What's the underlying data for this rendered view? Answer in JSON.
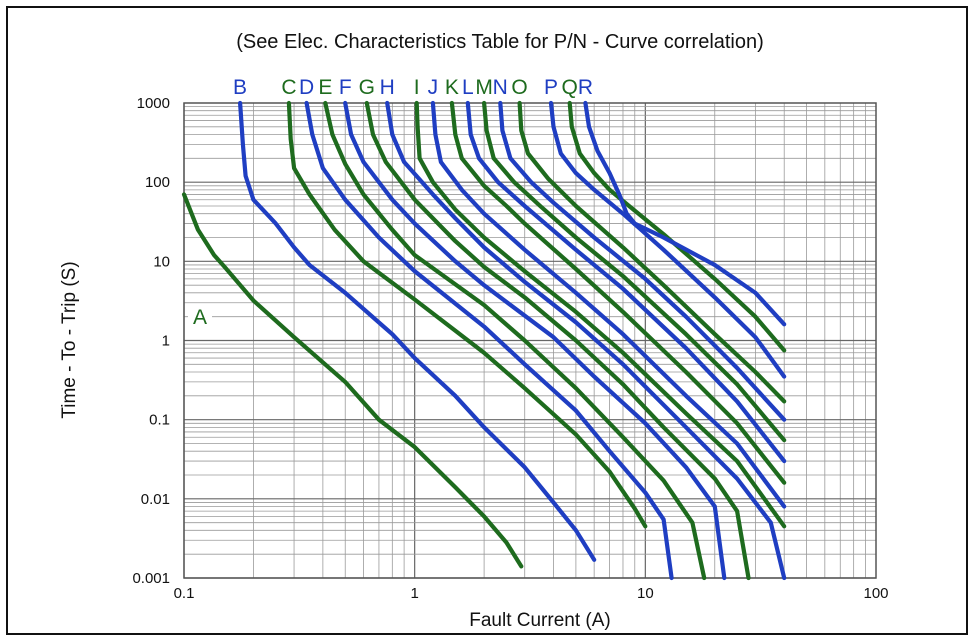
{
  "chart_data": {
    "type": "line",
    "title": "(See Elec. Characteristics Table for P/N - Curve correlation)",
    "xlabel": "Fault Current (A)",
    "ylabel": "Time - To - Trip (S)",
    "xscale": "log",
    "yscale": "log",
    "xlim": [
      0.1,
      100
    ],
    "ylim": [
      0.001,
      1000
    ],
    "xticks": [
      "0.1",
      "1",
      "10",
      "100"
    ],
    "yticks": [
      "1000",
      "100",
      "10",
      "1",
      "0.1",
      "0.01",
      "0.001"
    ],
    "grid": true,
    "colors": {
      "blue": "#1f3ec2",
      "green": "#1e6b1e"
    },
    "series": [
      {
        "name": "A",
        "color": "#1e6b1e",
        "label_pos": "left",
        "points": [
          [
            0.1,
            70
          ],
          [
            0.115,
            25
          ],
          [
            0.135,
            12
          ],
          [
            0.15,
            8.5
          ],
          [
            0.2,
            3.2
          ],
          [
            0.3,
            1.1
          ],
          [
            0.5,
            0.3
          ],
          [
            0.7,
            0.1
          ],
          [
            1,
            0.045
          ],
          [
            1.5,
            0.014
          ],
          [
            2,
            0.006
          ],
          [
            2.5,
            0.0028
          ],
          [
            2.9,
            0.0014
          ]
        ]
      },
      {
        "name": "B",
        "color": "#1f3ec2",
        "points": [
          [
            0.175,
            1000
          ],
          [
            0.18,
            300
          ],
          [
            0.185,
            120
          ],
          [
            0.2,
            60
          ],
          [
            0.25,
            30
          ],
          [
            0.3,
            15
          ],
          [
            0.35,
            9
          ],
          [
            0.5,
            4
          ],
          [
            0.8,
            1.2
          ],
          [
            1,
            0.6
          ],
          [
            1.5,
            0.2
          ],
          [
            2,
            0.08
          ],
          [
            3,
            0.025
          ],
          [
            4,
            0.009
          ],
          [
            5,
            0.004
          ],
          [
            6,
            0.0017
          ]
        ]
      },
      {
        "name": "C",
        "color": "#1e6b1e",
        "points": [
          [
            0.285,
            1000
          ],
          [
            0.29,
            350
          ],
          [
            0.3,
            150
          ],
          [
            0.35,
            70
          ],
          [
            0.45,
            25
          ],
          [
            0.6,
            10
          ],
          [
            1,
            3.3
          ],
          [
            2,
            0.7
          ],
          [
            3,
            0.25
          ],
          [
            5,
            0.065
          ],
          [
            7,
            0.022
          ],
          [
            9,
            0.0075
          ],
          [
            10,
            0.0045
          ]
        ]
      },
      {
        "name": "D",
        "color": "#1f3ec2",
        "points": [
          [
            0.34,
            1000
          ],
          [
            0.36,
            400
          ],
          [
            0.4,
            150
          ],
          [
            0.5,
            60
          ],
          [
            0.7,
            20
          ],
          [
            1,
            7.5
          ],
          [
            2,
            1.5
          ],
          [
            3,
            0.5
          ],
          [
            5,
            0.13
          ],
          [
            7,
            0.04
          ],
          [
            10,
            0.012
          ],
          [
            12,
            0.0055
          ],
          [
            13,
            0.001
          ]
        ]
      },
      {
        "name": "E",
        "color": "#1e6b1e",
        "points": [
          [
            0.41,
            1000
          ],
          [
            0.44,
            400
          ],
          [
            0.5,
            170
          ],
          [
            0.6,
            70
          ],
          [
            0.8,
            25
          ],
          [
            1,
            12
          ],
          [
            2,
            2.8
          ],
          [
            3,
            1
          ],
          [
            5,
            0.25
          ],
          [
            8,
            0.06
          ],
          [
            12,
            0.017
          ],
          [
            16,
            0.005
          ],
          [
            18,
            0.001
          ]
        ]
      },
      {
        "name": "F",
        "color": "#1f3ec2",
        "points": [
          [
            0.5,
            1000
          ],
          [
            0.53,
            400
          ],
          [
            0.6,
            180
          ],
          [
            0.8,
            60
          ],
          [
            1,
            30
          ],
          [
            1.5,
            10
          ],
          [
            2,
            5
          ],
          [
            4,
            1.1
          ],
          [
            6,
            0.35
          ],
          [
            10,
            0.09
          ],
          [
            15,
            0.025
          ],
          [
            20,
            0.008
          ],
          [
            22,
            0.001
          ]
        ]
      },
      {
        "name": "G",
        "color": "#1e6b1e",
        "points": [
          [
            0.62,
            1000
          ],
          [
            0.66,
            400
          ],
          [
            0.75,
            180
          ],
          [
            1,
            60
          ],
          [
            1.5,
            18
          ],
          [
            2,
            8.5
          ],
          [
            3,
            3.5
          ],
          [
            5,
            1
          ],
          [
            8,
            0.28
          ],
          [
            12,
            0.08
          ],
          [
            20,
            0.018
          ],
          [
            25,
            0.007
          ],
          [
            28,
            0.001
          ]
        ]
      },
      {
        "name": "H",
        "color": "#1f3ec2",
        "points": [
          [
            0.76,
            1000
          ],
          [
            0.8,
            400
          ],
          [
            0.9,
            180
          ],
          [
            1.2,
            70
          ],
          [
            1.5,
            35
          ],
          [
            2,
            15
          ],
          [
            3,
            5.5
          ],
          [
            5,
            1.7
          ],
          [
            8,
            0.5
          ],
          [
            15,
            0.08
          ],
          [
            25,
            0.018
          ],
          [
            35,
            0.005
          ],
          [
            40,
            0.001
          ]
        ]
      },
      {
        "name": "I",
        "color": "#1e6b1e",
        "points": [
          [
            1.02,
            1000
          ],
          [
            1.03,
            500
          ],
          [
            1.05,
            200
          ],
          [
            1.2,
            100
          ],
          [
            1.5,
            45
          ],
          [
            2,
            20
          ],
          [
            3,
            7.5
          ],
          [
            5,
            2.3
          ],
          [
            8,
            0.7
          ],
          [
            15,
            0.12
          ],
          [
            25,
            0.03
          ],
          [
            40,
            0.0045
          ]
        ]
      },
      {
        "name": "J",
        "color": "#1f3ec2",
        "points": [
          [
            1.2,
            1000
          ],
          [
            1.23,
            400
          ],
          [
            1.3,
            180
          ],
          [
            1.6,
            80
          ],
          [
            2,
            40
          ],
          [
            3,
            14
          ],
          [
            5,
            4
          ],
          [
            8,
            1.2
          ],
          [
            15,
            0.2
          ],
          [
            25,
            0.05
          ],
          [
            40,
            0.008
          ]
        ]
      },
      {
        "name": "K",
        "color": "#1e6b1e",
        "points": [
          [
            1.45,
            1000
          ],
          [
            1.5,
            400
          ],
          [
            1.6,
            200
          ],
          [
            2,
            90
          ],
          [
            2.5,
            50
          ],
          [
            3,
            30
          ],
          [
            5,
            8
          ],
          [
            8,
            2.3
          ],
          [
            15,
            0.4
          ],
          [
            25,
            0.09
          ],
          [
            40,
            0.016
          ]
        ]
      },
      {
        "name": "L",
        "color": "#1f3ec2",
        "points": [
          [
            1.7,
            1000
          ],
          [
            1.75,
            400
          ],
          [
            1.9,
            200
          ],
          [
            2.3,
            100
          ],
          [
            3,
            50
          ],
          [
            5,
            14
          ],
          [
            8,
            4.5
          ],
          [
            15,
            0.8
          ],
          [
            25,
            0.17
          ],
          [
            40,
            0.03
          ]
        ]
      },
      {
        "name": "M",
        "color": "#1e6b1e",
        "points": [
          [
            2.0,
            1000
          ],
          [
            2.05,
            450
          ],
          [
            2.2,
            200
          ],
          [
            2.7,
            100
          ],
          [
            3.5,
            50
          ],
          [
            5,
            20
          ],
          [
            8,
            6.5
          ],
          [
            15,
            1.2
          ],
          [
            25,
            0.28
          ],
          [
            40,
            0.055
          ]
        ]
      },
      {
        "name": "N",
        "color": "#1f3ec2",
        "points": [
          [
            2.35,
            1000
          ],
          [
            2.4,
            450
          ],
          [
            2.6,
            200
          ],
          [
            3.2,
            100
          ],
          [
            4,
            55
          ],
          [
            6,
            20
          ],
          [
            10,
            6
          ],
          [
            15,
            2
          ],
          [
            25,
            0.45
          ],
          [
            40,
            0.1
          ]
        ]
      },
      {
        "name": "O",
        "color": "#1e6b1e",
        "points": [
          [
            2.85,
            1000
          ],
          [
            2.9,
            450
          ],
          [
            3.1,
            230
          ],
          [
            3.8,
            110
          ],
          [
            5,
            50
          ],
          [
            8,
            15
          ],
          [
            12,
            5
          ],
          [
            20,
            1.2
          ],
          [
            30,
            0.4
          ],
          [
            40,
            0.17
          ]
        ]
      },
      {
        "name": "P",
        "color": "#1f3ec2",
        "points": [
          [
            3.9,
            1000
          ],
          [
            4.0,
            500
          ],
          [
            4.3,
            230
          ],
          [
            5,
            130
          ],
          [
            6,
            80
          ],
          [
            8,
            40
          ],
          [
            12,
            14
          ],
          [
            20,
            3.5
          ],
          [
            30,
            1.1
          ],
          [
            40,
            0.35
          ]
        ]
      },
      {
        "name": "Q",
        "color": "#1e6b1e",
        "points": [
          [
            4.7,
            1000
          ],
          [
            4.8,
            500
          ],
          [
            5.2,
            230
          ],
          [
            6,
            130
          ],
          [
            7,
            80
          ],
          [
            8.5,
            50
          ],
          [
            12,
            22
          ],
          [
            20,
            6
          ],
          [
            30,
            2
          ],
          [
            40,
            0.75
          ]
        ]
      },
      {
        "name": "R",
        "color": "#1f3ec2",
        "points": [
          [
            5.5,
            1000
          ],
          [
            5.7,
            500
          ],
          [
            6.2,
            250
          ],
          [
            7,
            130
          ],
          [
            7.7,
            70
          ],
          [
            8.3,
            40
          ],
          [
            9,
            30
          ],
          [
            12,
            20
          ],
          [
            20,
            9
          ],
          [
            30,
            4
          ],
          [
            40,
            1.6
          ]
        ]
      }
    ]
  }
}
